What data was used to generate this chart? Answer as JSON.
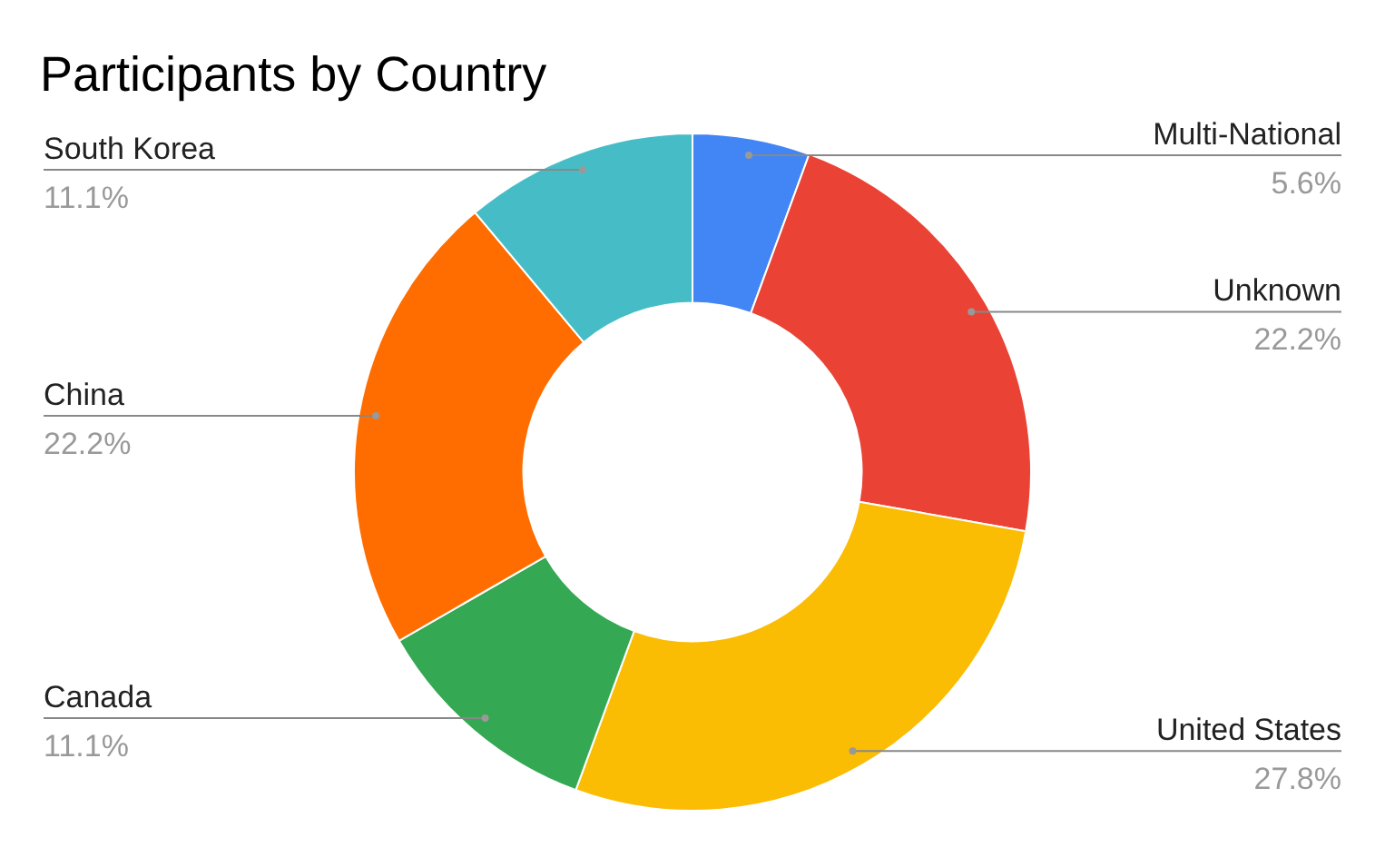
{
  "chart_data": {
    "type": "donut",
    "title": "Participants by Country",
    "categories": [
      "Multi-National",
      "Unknown",
      "United States",
      "Canada",
      "China",
      "South Korea"
    ],
    "values": [
      5.6,
      22.2,
      27.8,
      11.1,
      22.2,
      11.1
    ],
    "colors": [
      "#4285f4",
      "#ea4335",
      "#fbbc04",
      "#34a853",
      "#ff6d01",
      "#46bdc6"
    ],
    "value_labels": [
      "5.6%",
      "22.2%",
      "27.8%",
      "11.1%",
      "22.2%",
      "11.1%"
    ],
    "legend": false
  }
}
